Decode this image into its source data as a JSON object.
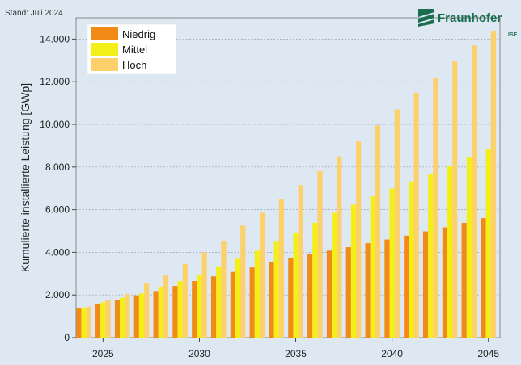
{
  "header": {
    "stand": "Stand: Juli 2024",
    "brand": "Fraunhofer",
    "brand_sub": "ISE"
  },
  "colors": {
    "background": "#dde8f3",
    "plot_border": "#888888",
    "grid": "#9aa4ae",
    "logo_green": "#1a6e4e"
  },
  "chart_data": {
    "type": "bar",
    "title": "",
    "xlabel": "",
    "ylabel": "Kumulierte installierte Leistung [GWp]",
    "x": [
      2024,
      2025,
      2026,
      2027,
      2028,
      2029,
      2030,
      2031,
      2032,
      2033,
      2034,
      2035,
      2036,
      2037,
      2038,
      2039,
      2040,
      2041,
      2042,
      2043,
      2044,
      2045
    ],
    "xticks": [
      2025,
      2030,
      2035,
      2040,
      2045
    ],
    "xtick_labels": [
      "2025",
      "2030",
      "2035",
      "2040",
      "2045"
    ],
    "ylim": [
      0,
      15000
    ],
    "yticks": [
      0,
      2000,
      4000,
      6000,
      8000,
      10000,
      12000,
      14000
    ],
    "ytick_labels": [
      "0",
      "2.000",
      "4.000",
      "6.000",
      "8.000",
      "10.000",
      "12.000",
      "14.000"
    ],
    "grid": true,
    "legend_position": "top-left",
    "series": [
      {
        "name": "Niedrig",
        "color": "#f28a17",
        "values": [
          1360,
          1580,
          1780,
          1980,
          2180,
          2420,
          2650,
          2870,
          3080,
          3290,
          3530,
          3730,
          3930,
          4080,
          4240,
          4430,
          4600,
          4780,
          4980,
          5170,
          5380,
          5600
        ]
      },
      {
        "name": "Mittel",
        "color": "#f5ef18",
        "values": [
          1400,
          1650,
          1870,
          2070,
          2350,
          2650,
          2950,
          3300,
          3700,
          4080,
          4500,
          4930,
          5380,
          5850,
          6230,
          6630,
          6990,
          7320,
          7680,
          8060,
          8460,
          8860
        ]
      },
      {
        "name": "Hoch",
        "color": "#fcd06a",
        "values": [
          1450,
          1750,
          2050,
          2550,
          2950,
          3450,
          4000,
          4550,
          5250,
          5850,
          6500,
          7150,
          7800,
          8500,
          9200,
          9950,
          10700,
          11480,
          12200,
          12950,
          13700,
          14350
        ]
      }
    ]
  }
}
